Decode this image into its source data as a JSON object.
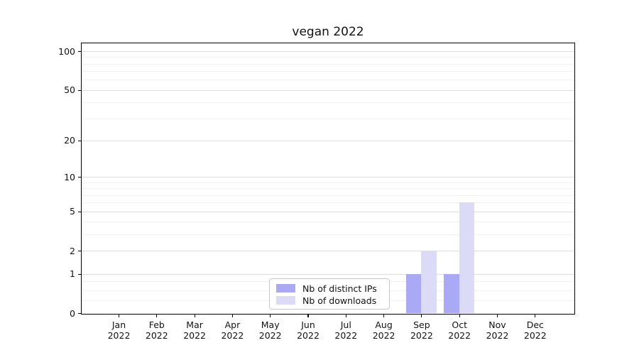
{
  "chart_data": {
    "type": "bar",
    "title": "vegan 2022",
    "categories": [
      {
        "month": "Jan",
        "year": "2022"
      },
      {
        "month": "Feb",
        "year": "2022"
      },
      {
        "month": "Mar",
        "year": "2022"
      },
      {
        "month": "Apr",
        "year": "2022"
      },
      {
        "month": "May",
        "year": "2022"
      },
      {
        "month": "Jun",
        "year": "2022"
      },
      {
        "month": "Jul",
        "year": "2022"
      },
      {
        "month": "Aug",
        "year": "2022"
      },
      {
        "month": "Sep",
        "year": "2022"
      },
      {
        "month": "Oct",
        "year": "2022"
      },
      {
        "month": "Nov",
        "year": "2022"
      },
      {
        "month": "Dec",
        "year": "2022"
      }
    ],
    "series": [
      {
        "name": "Nb of distinct IPs",
        "color": "#a9a9f5",
        "values": [
          0,
          0,
          0,
          0,
          0,
          0,
          0,
          0,
          1,
          1,
          0,
          0
        ]
      },
      {
        "name": "Nb of downloads",
        "color": "#dbdbf8",
        "values": [
          0,
          0,
          0,
          0,
          0,
          0,
          0,
          0,
          2,
          6,
          0,
          0
        ]
      }
    ],
    "xlabel": "",
    "ylabel": "",
    "yscale": "log1p",
    "ylim": [
      0,
      115
    ],
    "y_ticks": [
      0,
      1,
      2,
      5,
      10,
      20,
      50,
      100
    ],
    "y_minor_gridlines": [
      0.25,
      0.5,
      0.75,
      3,
      4,
      6,
      7,
      8,
      9,
      30,
      40,
      60,
      70,
      80,
      90
    ],
    "grid": true,
    "legend_position": "lower center"
  },
  "colors": {
    "grid_major": "#dcdcdc",
    "grid_minor": "#f0f0f0",
    "axis": "#000000",
    "legend_border": "#c9c9c9",
    "background": "#ffffff"
  }
}
